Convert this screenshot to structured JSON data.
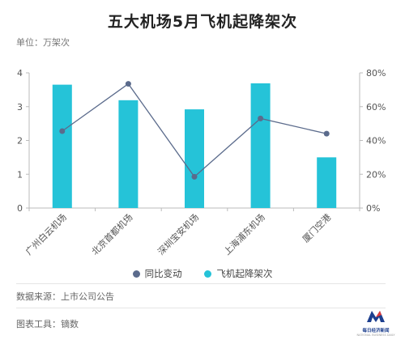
{
  "title": "五大机场5月飞机起降架次",
  "unit_label": "单位：万架次",
  "source_label": "数据来源：上市公司公告",
  "tool_label": "图表工具：镝数",
  "logo": {
    "text": "每日经济新闻",
    "subtext": "NATIONAL BUSINESS DAILY"
  },
  "colors": {
    "bar": "#25c3d8",
    "line": "#5b6b8c",
    "axis": "#bbbbbb",
    "text": "#555555"
  },
  "chart_data": {
    "type": "bar",
    "categories": [
      "广州白云机场",
      "北京首都机场",
      "深圳宝安机场",
      "上海浦东机场",
      "厦门空港"
    ],
    "series": [
      {
        "name": "飞机起降架次",
        "type": "bar",
        "axis": "left",
        "values": [
          3.65,
          3.19,
          2.92,
          3.69,
          1.5
        ]
      },
      {
        "name": "同比变动",
        "type": "line",
        "axis": "right",
        "values": [
          45.5,
          73.5,
          18.5,
          53.0,
          44.0
        ]
      }
    ],
    "y_left": {
      "min": 0,
      "max": 4,
      "ticks": [
        "0",
        "1",
        "2",
        "3",
        "4"
      ]
    },
    "y_right": {
      "min": 0,
      "max": 80,
      "ticks": [
        "0%",
        "20%",
        "40%",
        "60%",
        "80%"
      ]
    },
    "legend": [
      "同比变动",
      "飞机起降架次"
    ],
    "legend_position": "bottom",
    "grid": false
  }
}
